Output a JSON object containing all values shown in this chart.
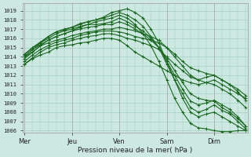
{
  "xlabel": "Pression niveau de la mer( hPa )",
  "ylim": [
    1005.8,
    1019.8
  ],
  "yticks": [
    1006,
    1007,
    1008,
    1009,
    1010,
    1011,
    1012,
    1013,
    1014,
    1015,
    1016,
    1017,
    1018,
    1019
  ],
  "xtick_labels": [
    "Mer",
    "Jeu",
    "Ven",
    "Sam",
    "Dim"
  ],
  "xtick_positions": [
    0,
    24,
    48,
    72,
    96
  ],
  "xlim": [
    -1,
    113
  ],
  "background_color": "#cce8e0",
  "grid_color": "#99ccbb",
  "line_color": "#1a6620",
  "line_width": 0.8,
  "marker": "+",
  "marker_size": 2.5,
  "vline_color": "#aaaaaa",
  "series": [
    {
      "x": [
        0,
        4,
        8,
        12,
        16,
        20,
        24,
        28,
        32,
        36,
        40,
        44,
        48,
        52,
        56,
        60,
        64,
        68,
        72,
        76,
        80,
        84,
        88,
        92,
        96,
        100,
        104,
        108,
        112
      ],
      "y": [
        1013.2,
        1013.8,
        1014.2,
        1014.5,
        1015.0,
        1015.2,
        1015.3,
        1015.5,
        1015.6,
        1015.8,
        1016.0,
        1016.0,
        1015.8,
        1015.2,
        1014.5,
        1014.0,
        1013.5,
        1013.0,
        1012.5,
        1012.0,
        1011.5,
        1011.2,
        1011.0,
        1011.2,
        1011.5,
        1011.0,
        1010.5,
        1010.0,
        1009.5
      ]
    },
    {
      "x": [
        0,
        4,
        8,
        12,
        16,
        20,
        24,
        28,
        32,
        36,
        40,
        44,
        48,
        52,
        56,
        60,
        64,
        68,
        72,
        76,
        80,
        84,
        88,
        92,
        96,
        100,
        104,
        108,
        112
      ],
      "y": [
        1013.2,
        1013.9,
        1014.5,
        1015.0,
        1015.3,
        1015.5,
        1015.8,
        1016.0,
        1016.2,
        1016.3,
        1016.5,
        1016.5,
        1016.3,
        1016.0,
        1015.8,
        1015.5,
        1015.2,
        1014.8,
        1014.0,
        1013.2,
        1012.5,
        1011.8,
        1011.5,
        1011.8,
        1012.0,
        1011.5,
        1011.0,
        1010.5,
        1009.8
      ]
    },
    {
      "x": [
        0,
        4,
        8,
        12,
        16,
        20,
        24,
        28,
        32,
        36,
        40,
        44,
        48,
        52,
        56,
        60,
        64,
        68,
        72,
        76,
        80,
        84,
        88,
        92,
        96,
        100,
        104,
        108,
        112
      ],
      "y": [
        1013.5,
        1014.2,
        1014.8,
        1015.2,
        1015.6,
        1015.8,
        1016.0,
        1016.3,
        1016.5,
        1016.7,
        1016.8,
        1016.8,
        1016.7,
        1016.5,
        1016.2,
        1016.0,
        1015.8,
        1015.5,
        1015.0,
        1014.3,
        1013.5,
        1012.8,
        1012.5,
        1012.2,
        1012.0,
        1011.5,
        1011.0,
        1010.2,
        1009.3
      ]
    },
    {
      "x": [
        0,
        4,
        8,
        12,
        16,
        20,
        24,
        28,
        32,
        36,
        40,
        44,
        48,
        52,
        56,
        60,
        64,
        68,
        72,
        76,
        80,
        84,
        88,
        92,
        96,
        100,
        104,
        108,
        112
      ],
      "y": [
        1013.8,
        1014.5,
        1015.2,
        1015.5,
        1015.8,
        1016.0,
        1016.3,
        1016.5,
        1016.7,
        1016.8,
        1017.0,
        1017.0,
        1017.2,
        1017.0,
        1016.8,
        1016.5,
        1016.2,
        1015.8,
        1015.0,
        1014.0,
        1013.0,
        1012.0,
        1011.5,
        1011.2,
        1011.0,
        1010.5,
        1010.0,
        1009.3,
        1008.5
      ]
    },
    {
      "x": [
        0,
        4,
        8,
        12,
        16,
        20,
        24,
        28,
        32,
        36,
        40,
        44,
        48,
        52,
        56,
        60,
        64,
        68,
        72,
        76,
        80,
        84,
        88,
        92,
        96,
        100,
        104,
        108,
        112
      ],
      "y": [
        1014.0,
        1014.8,
        1015.3,
        1015.8,
        1016.2,
        1016.5,
        1016.8,
        1017.0,
        1017.2,
        1017.3,
        1017.5,
        1017.5,
        1017.8,
        1017.5,
        1017.0,
        1016.5,
        1015.8,
        1015.0,
        1013.8,
        1012.5,
        1011.2,
        1010.0,
        1009.5,
        1009.3,
        1009.2,
        1008.5,
        1008.0,
        1007.3,
        1006.5
      ]
    },
    {
      "x": [
        0,
        4,
        8,
        12,
        16,
        20,
        24,
        28,
        32,
        36,
        40,
        44,
        48,
        52,
        56,
        60,
        64,
        68,
        72,
        76,
        80,
        84,
        88,
        92,
        96,
        100,
        104,
        108,
        112
      ],
      "y": [
        1014.2,
        1015.0,
        1015.5,
        1016.0,
        1016.5,
        1016.8,
        1017.0,
        1017.3,
        1017.5,
        1017.5,
        1017.6,
        1017.8,
        1018.2,
        1017.8,
        1017.3,
        1016.8,
        1016.0,
        1015.0,
        1013.5,
        1012.0,
        1010.5,
        1009.2,
        1008.8,
        1009.0,
        1009.3,
        1008.8,
        1008.3,
        1007.5,
        1006.5
      ]
    },
    {
      "x": [
        0,
        4,
        8,
        12,
        16,
        20,
        24,
        28,
        32,
        36,
        40,
        44,
        48,
        52,
        56,
        60,
        64,
        68,
        72,
        76,
        80,
        84,
        88,
        92,
        96,
        100,
        104,
        108,
        112
      ],
      "y": [
        1014.3,
        1015.0,
        1015.6,
        1016.2,
        1016.7,
        1016.9,
        1017.2,
        1017.6,
        1017.8,
        1018.0,
        1018.2,
        1018.5,
        1018.8,
        1018.5,
        1018.0,
        1017.3,
        1016.2,
        1015.0,
        1013.2,
        1011.5,
        1010.0,
        1008.5,
        1008.0,
        1008.3,
        1008.8,
        1008.2,
        1007.8,
        1007.0,
        1006.2
      ]
    },
    {
      "x": [
        0,
        4,
        8,
        12,
        16,
        20,
        24,
        28,
        32,
        36,
        40,
        44,
        48,
        52,
        56,
        60,
        64,
        68,
        72,
        76,
        80,
        84,
        88,
        92,
        96,
        100,
        104,
        108,
        112
      ],
      "y": [
        1014.0,
        1014.8,
        1015.5,
        1016.2,
        1016.7,
        1017.0,
        1017.2,
        1017.5,
        1017.8,
        1018.0,
        1018.3,
        1018.8,
        1019.0,
        1019.2,
        1018.8,
        1018.2,
        1017.0,
        1015.5,
        1013.5,
        1011.5,
        1009.5,
        1008.0,
        1007.5,
        1007.8,
        1008.0,
        1007.5,
        1007.0,
        1006.5,
        1006.0
      ]
    },
    {
      "x": [
        0,
        4,
        8,
        12,
        16,
        20,
        24,
        28,
        32,
        36,
        40,
        44,
        48,
        52,
        56,
        60,
        64,
        68,
        72,
        76,
        80,
        84,
        88,
        92,
        96,
        100,
        104,
        108,
        112
      ],
      "y": [
        1014.0,
        1014.5,
        1015.2,
        1015.8,
        1016.2,
        1016.5,
        1016.8,
        1017.2,
        1017.5,
        1017.8,
        1018.0,
        1018.2,
        1018.5,
        1018.2,
        1017.5,
        1016.5,
        1015.2,
        1013.5,
        1011.5,
        1009.5,
        1008.0,
        1006.8,
        1006.3,
        1006.2,
        1006.0,
        1005.9,
        1005.9,
        1006.0,
        1006.0
      ]
    }
  ]
}
